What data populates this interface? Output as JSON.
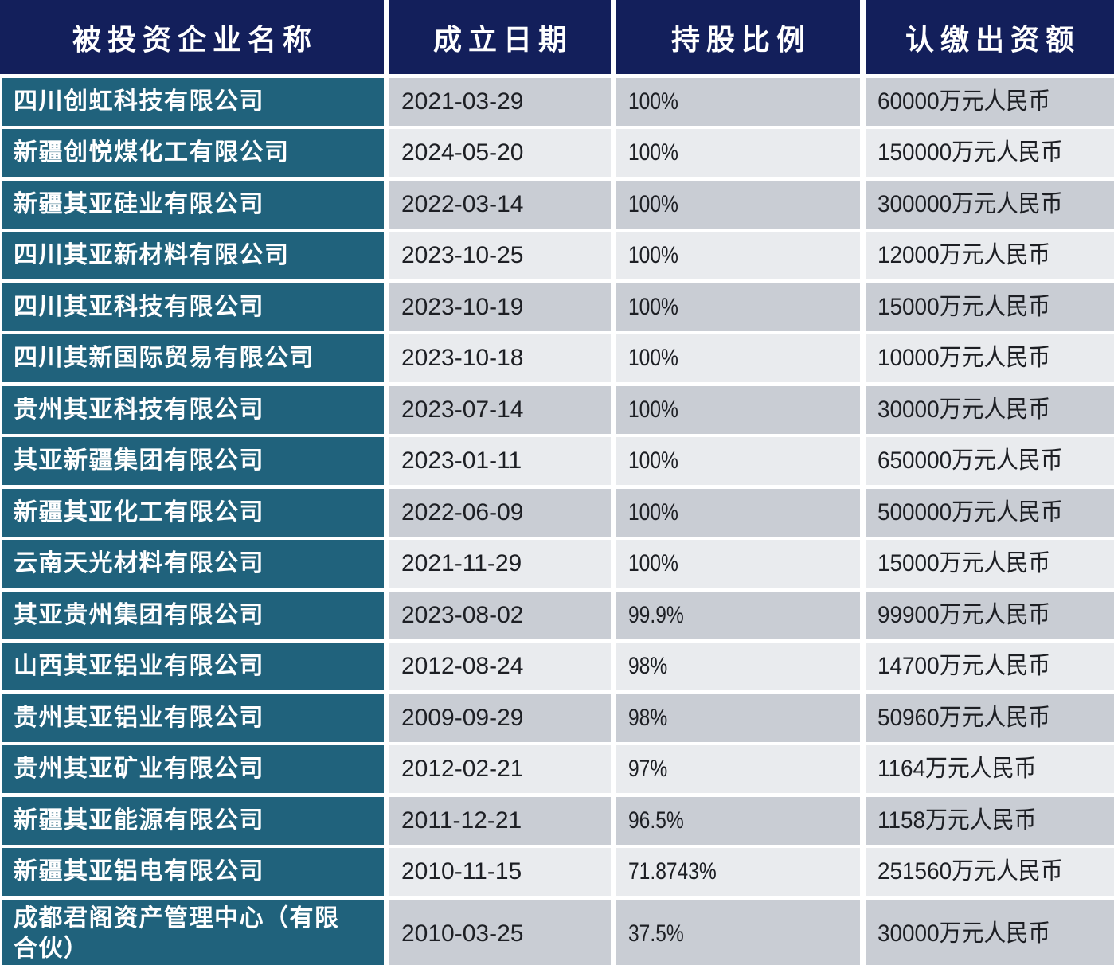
{
  "chart_data": {
    "type": "table",
    "title": "",
    "columns": [
      "被投资企业名称",
      "成立日期",
      "持股比例",
      "认缴出资额"
    ],
    "rows": [
      [
        "四川创虹科技有限公司",
        "2021-03-29",
        "100%",
        "60000万元人民币"
      ],
      [
        "新疆创悦煤化工有限公司",
        "2024-05-20",
        "100%",
        "150000万元人民币"
      ],
      [
        "新疆其亚硅业有限公司",
        "2022-03-14",
        "100%",
        "300000万元人民币"
      ],
      [
        "四川其亚新材料有限公司",
        "2023-10-25",
        "100%",
        "12000万元人民币"
      ],
      [
        "四川其亚科技有限公司",
        "2023-10-19",
        "100%",
        "15000万元人民币"
      ],
      [
        "四川其新国际贸易有限公司",
        "2023-10-18",
        "100%",
        "10000万元人民币"
      ],
      [
        "贵州其亚科技有限公司",
        "2023-07-14",
        "100%",
        "30000万元人民币"
      ],
      [
        "其亚新疆集团有限公司",
        "2023-01-11",
        "100%",
        "650000万元人民币"
      ],
      [
        "新疆其亚化工有限公司",
        "2022-06-09",
        "100%",
        "500000万元人民币"
      ],
      [
        "云南天光材料有限公司",
        "2021-11-29",
        "100%",
        "15000万元人民币"
      ],
      [
        "其亚贵州集团有限公司",
        "2023-08-02",
        "99.9%",
        "99900万元人民币"
      ],
      [
        "山西其亚铝业有限公司",
        "2012-08-24",
        "98%",
        "14700万元人民币"
      ],
      [
        "贵州其亚铝业有限公司",
        "2009-09-29",
        "98%",
        "50960万元人民币"
      ],
      [
        "贵州其亚矿业有限公司",
        "2012-02-21",
        "97%",
        "1164万元人民币"
      ],
      [
        "新疆其亚能源有限公司",
        "2011-12-21",
        "96.5%",
        "1158万元人民币"
      ],
      [
        "新疆其亚铝电有限公司",
        "2010-11-15",
        "71.8743%",
        "251560万元人民币"
      ],
      [
        "成都君阁资产管理中心（有限合伙）",
        "2010-03-25",
        "37.5%",
        "30000万元人民币"
      ]
    ]
  },
  "colors": {
    "header_bg": "#131f5b",
    "header_text": "#ffffff",
    "name_bg": "#20627c",
    "name_text": "#ffffff",
    "row_dark": "#c9cdd4",
    "row_light": "#e9ebee",
    "data_text": "#1d1f24",
    "gap": "#ffffff"
  }
}
